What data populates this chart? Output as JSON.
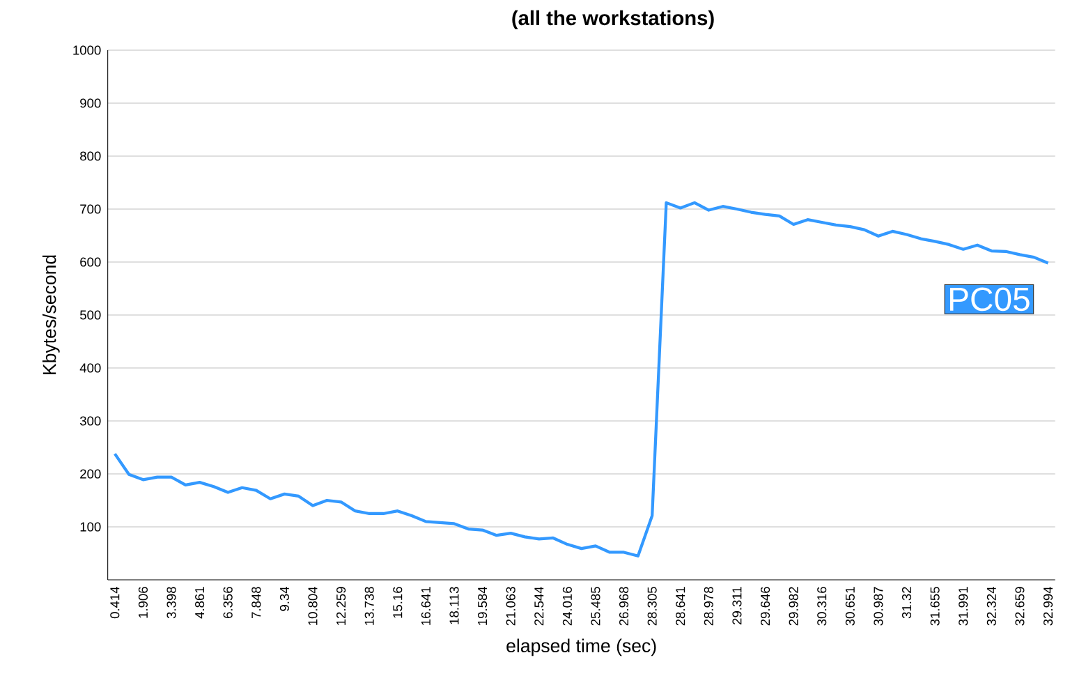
{
  "chart_data": {
    "type": "line",
    "title": "(all the workstations)",
    "xlabel": "elapsed time (sec)",
    "ylabel": "Kbytes/second",
    "categories": [
      "0.414",
      null,
      "1.906",
      null,
      "3.398",
      null,
      "4.861",
      null,
      "6.356",
      null,
      "7.848",
      null,
      "9.34",
      null,
      "10.804",
      null,
      "12.259",
      null,
      "13.738",
      null,
      "15.16",
      null,
      "16.641",
      null,
      "18.113",
      null,
      "19.584",
      null,
      "21.063",
      null,
      "22.544",
      null,
      "24.016",
      null,
      "25.485",
      null,
      "26.968",
      null,
      "28.305",
      null,
      "28.641",
      null,
      "28.978",
      null,
      "29.311",
      null,
      "29.646",
      null,
      "29.982",
      null,
      "30.316",
      null,
      "30.651",
      null,
      "30.987",
      null,
      "31.32",
      null,
      "31.655",
      null,
      "31.991",
      null,
      "32.324",
      null,
      "32.659",
      null,
      "32.994"
    ],
    "series": [
      {
        "name": "PC05",
        "color": "#3399ff",
        "values": [
          238,
          199,
          189,
          194,
          194,
          179,
          184,
          176,
          165,
          174,
          169,
          153,
          162,
          158,
          140,
          150,
          147,
          130,
          125,
          125,
          130,
          121,
          110,
          108,
          106,
          96,
          94,
          84,
          88,
          81,
          77,
          79,
          67,
          59,
          64,
          52,
          52,
          45,
          121,
          712,
          702,
          712,
          698,
          705,
          700,
          694,
          690,
          687,
          671,
          680,
          675,
          670,
          667,
          661,
          649,
          658,
          652,
          644,
          639,
          633,
          624,
          632,
          621,
          620,
          614,
          609,
          598
        ]
      }
    ],
    "ylim": [
      0,
      1000
    ],
    "yticks": [
      100,
      200,
      300,
      400,
      500,
      600,
      700,
      800,
      900,
      1000
    ],
    "grid": "y",
    "marker": "none",
    "line_style": "solid"
  }
}
